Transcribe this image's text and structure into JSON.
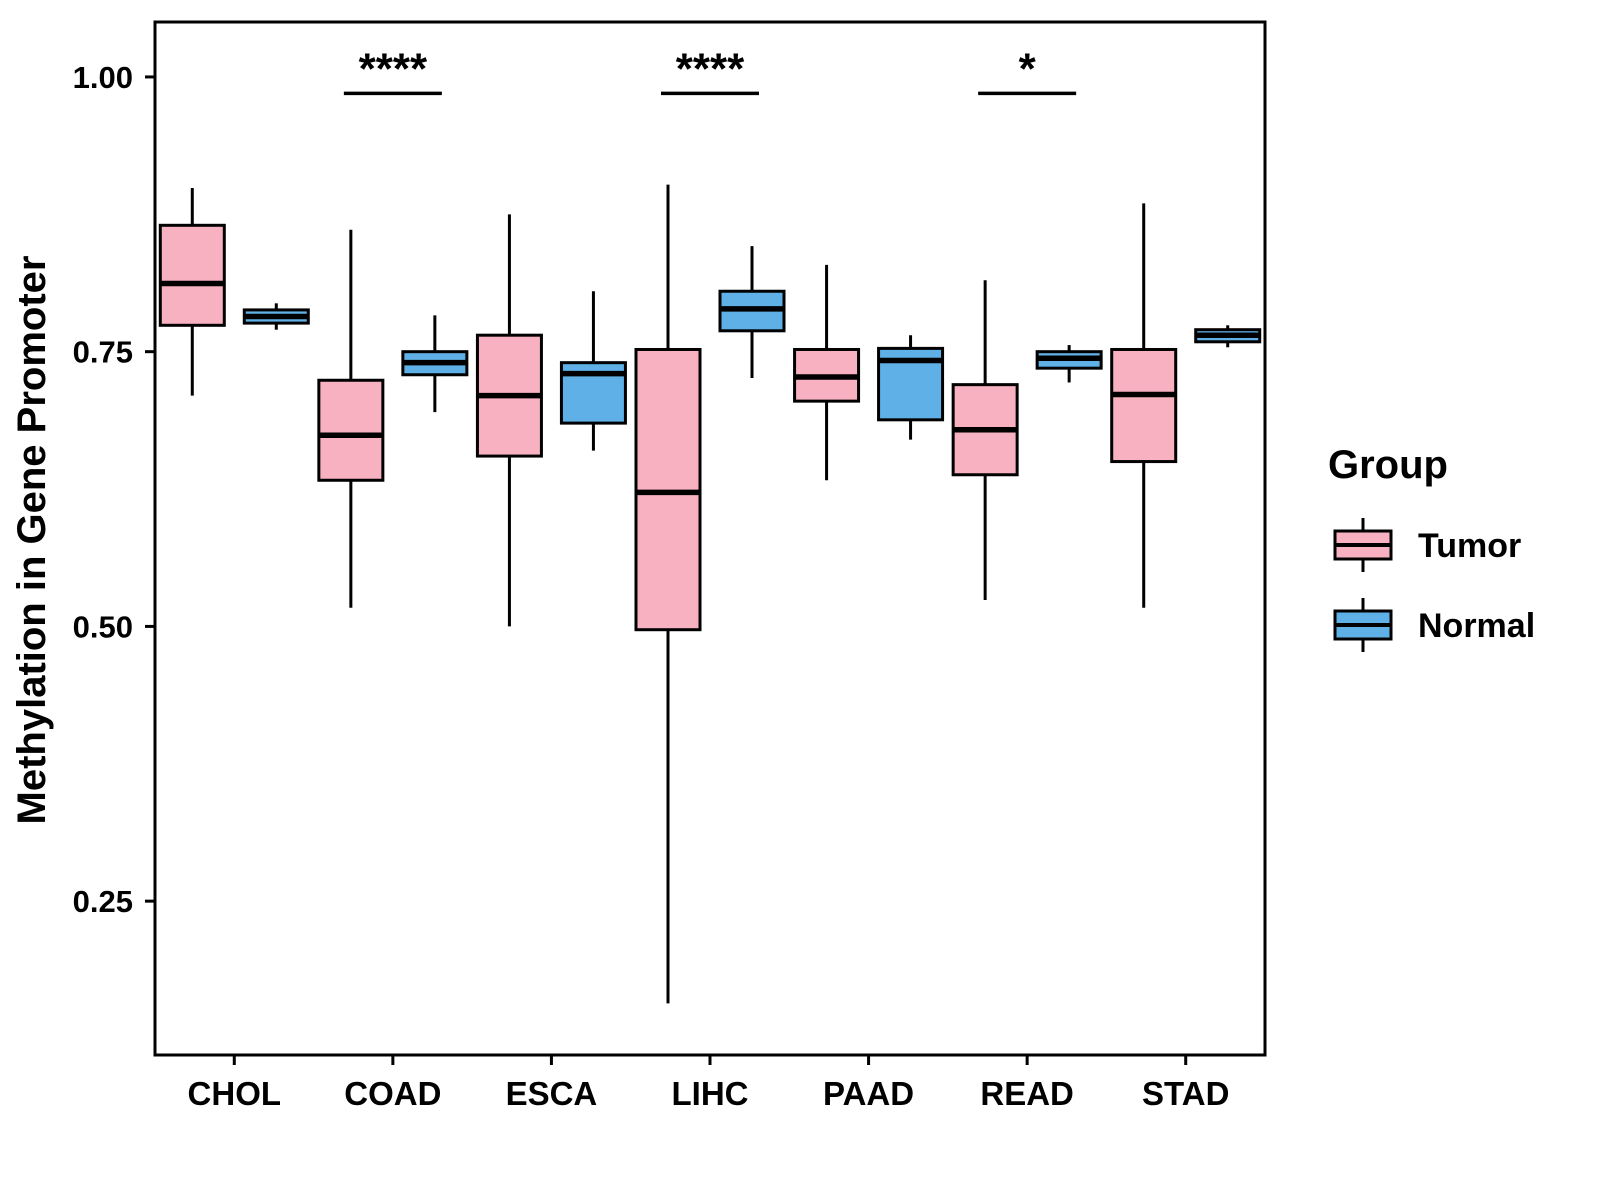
{
  "chart_data": {
    "type": "boxplot",
    "title": "",
    "xlabel": "",
    "ylabel": "Methylation in Gene Promoter",
    "categories": [
      "CHOL",
      "COAD",
      "ESCA",
      "LIHC",
      "PAAD",
      "READ",
      "STAD"
    ],
    "ylim": [
      0.11,
      1.05
    ],
    "yticks": [
      0.25,
      0.5,
      0.75,
      1.0
    ],
    "grid": false,
    "panel_border": true,
    "legend": {
      "title": "Group",
      "position": "right"
    },
    "groups": [
      {
        "name": "Tumor",
        "fill": "#F8B1C0",
        "stroke": "#000000"
      },
      {
        "name": "Normal",
        "fill": "#5FB0E6",
        "stroke": "#000000"
      }
    ],
    "series": [
      {
        "name": "Tumor",
        "boxes": [
          {
            "category": "CHOL",
            "whislo": 0.71,
            "q1": 0.774,
            "med": 0.812,
            "q3": 0.865,
            "whishi": 0.899
          },
          {
            "category": "COAD",
            "whislo": 0.517,
            "q1": 0.633,
            "med": 0.674,
            "q3": 0.724,
            "whishi": 0.861
          },
          {
            "category": "ESCA",
            "whislo": 0.5,
            "q1": 0.655,
            "med": 0.71,
            "q3": 0.765,
            "whishi": 0.875
          },
          {
            "category": "LIHC",
            "whislo": 0.157,
            "q1": 0.497,
            "med": 0.622,
            "q3": 0.752,
            "whishi": 0.902
          },
          {
            "category": "PAAD",
            "whislo": 0.633,
            "q1": 0.705,
            "med": 0.727,
            "q3": 0.752,
            "whishi": 0.829
          },
          {
            "category": "READ",
            "whislo": 0.524,
            "q1": 0.638,
            "med": 0.679,
            "q3": 0.72,
            "whishi": 0.815
          },
          {
            "category": "STAD",
            "whislo": 0.517,
            "q1": 0.65,
            "med": 0.711,
            "q3": 0.752,
            "whishi": 0.885
          }
        ]
      },
      {
        "name": "Normal",
        "boxes": [
          {
            "category": "CHOL",
            "whislo": 0.77,
            "q1": 0.776,
            "med": 0.782,
            "q3": 0.788,
            "whishi": 0.794
          },
          {
            "category": "COAD",
            "whislo": 0.695,
            "q1": 0.729,
            "med": 0.74,
            "q3": 0.75,
            "whishi": 0.783
          },
          {
            "category": "ESCA",
            "whislo": 0.66,
            "q1": 0.685,
            "med": 0.73,
            "q3": 0.74,
            "whishi": 0.805
          },
          {
            "category": "LIHC",
            "whislo": 0.726,
            "q1": 0.769,
            "med": 0.789,
            "q3": 0.805,
            "whishi": 0.846
          },
          {
            "category": "PAAD",
            "whislo": 0.67,
            "q1": 0.688,
            "med": 0.742,
            "q3": 0.753,
            "whishi": 0.765
          },
          {
            "category": "READ",
            "whislo": 0.722,
            "q1": 0.735,
            "med": 0.744,
            "q3": 0.75,
            "whishi": 0.756
          },
          {
            "category": "STAD",
            "whislo": 0.754,
            "q1": 0.759,
            "med": 0.765,
            "q3": 0.77,
            "whishi": 0.774
          }
        ]
      }
    ],
    "significance": [
      {
        "category": "COAD",
        "label": "****",
        "y": 0.985
      },
      {
        "category": "LIHC",
        "label": "****",
        "y": 0.985
      },
      {
        "category": "READ",
        "label": "*",
        "y": 0.985
      }
    ]
  }
}
